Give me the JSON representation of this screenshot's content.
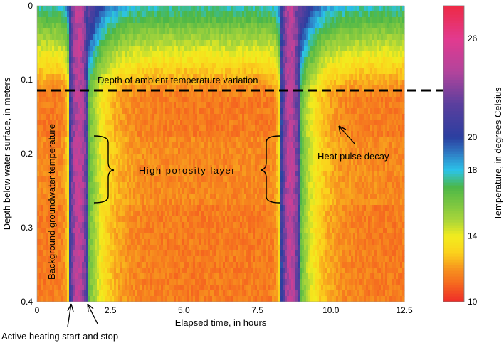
{
  "chart_data": {
    "type": "heatmap",
    "title": "",
    "xlabel": "Elapsed time, in hours",
    "ylabel": "Depth below water surface, in meters",
    "colorbar_label": "Temperature, in degrees Celsius",
    "xlim": [
      0,
      12.5
    ],
    "ylim": [
      0,
      0.4
    ],
    "y_inverted": true,
    "clim": [
      10,
      28
    ],
    "x_ticks": [
      0,
      2.5,
      5.0,
      7.5,
      10.0,
      12.5
    ],
    "x_tick_labels": [
      "0",
      "2.5",
      "5.0",
      "7.5",
      "10.0",
      "12.5"
    ],
    "y_ticks": [
      0,
      0.1,
      0.2,
      0.3,
      0.4
    ],
    "y_tick_labels": [
      "0",
      "0.1",
      "0.2",
      "0.3",
      "0.4"
    ],
    "colorbar_ticks": [
      10,
      14,
      18,
      20,
      26
    ],
    "colorbar_tick_labels": [
      "10",
      "14",
      "18",
      "20",
      "26"
    ],
    "colormap": [
      {
        "t": 10,
        "color": "#ee2a2a"
      },
      {
        "t": 11,
        "color": "#f5621f"
      },
      {
        "t": 12,
        "color": "#f7931e"
      },
      {
        "t": 13,
        "color": "#fbd21c"
      },
      {
        "t": 14,
        "color": "#f2ec1e"
      },
      {
        "t": 15,
        "color": "#a8d53a"
      },
      {
        "t": 17,
        "color": "#4cb748"
      },
      {
        "t": 18,
        "color": "#2bc4ea"
      },
      {
        "t": 19,
        "color": "#2f7fc6"
      },
      {
        "t": 20,
        "color": "#2b3fa0"
      },
      {
        "t": 22,
        "color": "#5a3f9e"
      },
      {
        "t": 24,
        "color": "#b2449c"
      },
      {
        "t": 26,
        "color": "#e23a8f"
      },
      {
        "t": 28,
        "color": "#ee2a45"
      }
    ],
    "background_temperature_c": 11.5,
    "ambient_variation_depth_m": 0.12,
    "heating_pulses": [
      {
        "start_h": 1.1,
        "stop_h": 1.75,
        "peak_c": 24
      },
      {
        "start_h": 8.3,
        "stop_h": 8.95,
        "peak_c": 24
      }
    ],
    "high_porosity_layer_m": [
      0.18,
      0.27
    ],
    "annotations": {
      "ambient_depth": "Depth of ambient temperature variation",
      "high_porosity": "High porosity layer",
      "heat_decay": "Heat pulse decay",
      "background": "Background groundwater temperature",
      "active_heating": "Active heating start and stop"
    }
  }
}
